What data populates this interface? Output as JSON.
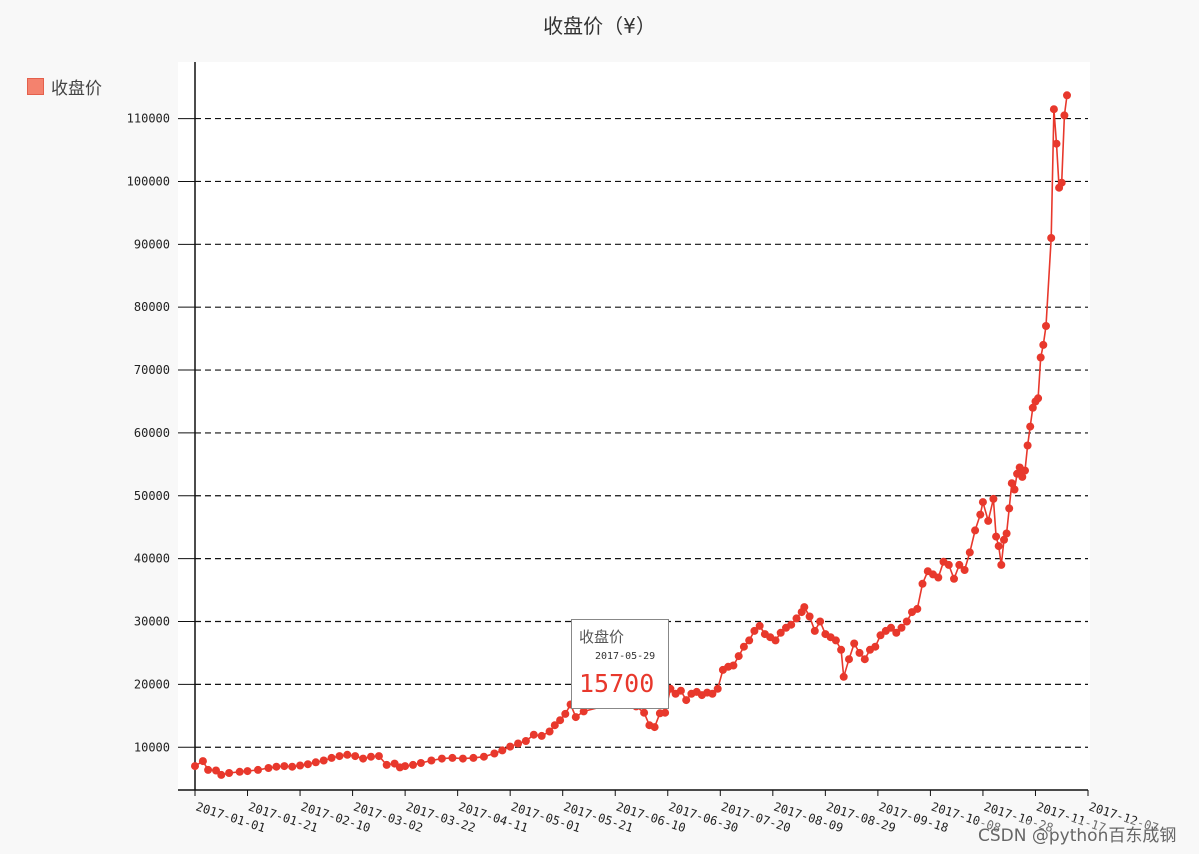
{
  "chart_data": {
    "type": "line",
    "title": "收盘价（¥）",
    "legend": {
      "position": "left",
      "entries": [
        "收盘价"
      ]
    },
    "series": [
      {
        "name": "收盘价",
        "color": "#e8382c",
        "points": [
          [
            "2017-01-01",
            7000
          ],
          [
            "2017-01-04",
            7800
          ],
          [
            "2017-01-06",
            6400
          ],
          [
            "2017-01-09",
            6300
          ],
          [
            "2017-01-11",
            5600
          ],
          [
            "2017-01-14",
            5900
          ],
          [
            "2017-01-18",
            6100
          ],
          [
            "2017-01-21",
            6200
          ],
          [
            "2017-01-25",
            6400
          ],
          [
            "2017-01-29",
            6700
          ],
          [
            "2017-02-01",
            6900
          ],
          [
            "2017-02-04",
            7000
          ],
          [
            "2017-02-07",
            6900
          ],
          [
            "2017-02-10",
            7100
          ],
          [
            "2017-02-13",
            7300
          ],
          [
            "2017-02-16",
            7600
          ],
          [
            "2017-02-19",
            7900
          ],
          [
            "2017-02-22",
            8300
          ],
          [
            "2017-02-25",
            8600
          ],
          [
            "2017-02-28",
            8800
          ],
          [
            "2017-03-03",
            8600
          ],
          [
            "2017-03-06",
            8200
          ],
          [
            "2017-03-09",
            8500
          ],
          [
            "2017-03-12",
            8600
          ],
          [
            "2017-03-15",
            7200
          ],
          [
            "2017-03-18",
            7400
          ],
          [
            "2017-03-20",
            6800
          ],
          [
            "2017-03-22",
            7000
          ],
          [
            "2017-03-25",
            7200
          ],
          [
            "2017-03-28",
            7500
          ],
          [
            "2017-04-01",
            7900
          ],
          [
            "2017-04-05",
            8200
          ],
          [
            "2017-04-09",
            8300
          ],
          [
            "2017-04-13",
            8200
          ],
          [
            "2017-04-17",
            8300
          ],
          [
            "2017-04-21",
            8500
          ],
          [
            "2017-04-25",
            9000
          ],
          [
            "2017-04-28",
            9500
          ],
          [
            "2017-05-01",
            10100
          ],
          [
            "2017-05-04",
            10600
          ],
          [
            "2017-05-07",
            11000
          ],
          [
            "2017-05-10",
            12000
          ],
          [
            "2017-05-13",
            11800
          ],
          [
            "2017-05-16",
            12500
          ],
          [
            "2017-05-18",
            13500
          ],
          [
            "2017-05-20",
            14300
          ],
          [
            "2017-05-22",
            15300
          ],
          [
            "2017-05-24",
            16800
          ],
          [
            "2017-05-26",
            14800
          ],
          [
            "2017-05-29",
            15700
          ],
          [
            "2017-06-15",
            17500
          ],
          [
            "2017-06-18",
            16500
          ],
          [
            "2017-06-21",
            15500
          ],
          [
            "2017-06-23",
            13500
          ],
          [
            "2017-06-25",
            13200
          ],
          [
            "2017-06-27",
            15400
          ],
          [
            "2017-06-29",
            15500
          ],
          [
            "2017-07-01",
            19300
          ],
          [
            "2017-07-03",
            18500
          ],
          [
            "2017-07-05",
            19000
          ],
          [
            "2017-07-07",
            17500
          ],
          [
            "2017-07-09",
            18500
          ],
          [
            "2017-07-11",
            18800
          ],
          [
            "2017-07-13",
            18300
          ],
          [
            "2017-07-15",
            18700
          ],
          [
            "2017-07-17",
            18500
          ],
          [
            "2017-07-19",
            19300
          ],
          [
            "2017-07-21",
            22300
          ],
          [
            "2017-07-23",
            22800
          ],
          [
            "2017-07-25",
            23000
          ],
          [
            "2017-07-27",
            24500
          ],
          [
            "2017-07-29",
            26000
          ],
          [
            "2017-07-31",
            27000
          ],
          [
            "2017-08-02",
            28500
          ],
          [
            "2017-08-04",
            29300
          ],
          [
            "2017-08-06",
            28000
          ],
          [
            "2017-08-08",
            27500
          ],
          [
            "2017-08-10",
            27000
          ],
          [
            "2017-08-12",
            28200
          ],
          [
            "2017-08-14",
            29000
          ],
          [
            "2017-08-16",
            29500
          ],
          [
            "2017-08-18",
            30500
          ],
          [
            "2017-08-20",
            31500
          ],
          [
            "2017-08-21",
            32300
          ],
          [
            "2017-08-23",
            30800
          ],
          [
            "2017-08-25",
            28500
          ],
          [
            "2017-08-27",
            30000
          ],
          [
            "2017-08-29",
            28000
          ],
          [
            "2017-08-31",
            27500
          ],
          [
            "2017-09-02",
            27000
          ],
          [
            "2017-09-04",
            25500
          ],
          [
            "2017-09-05",
            21200
          ],
          [
            "2017-09-07",
            24000
          ],
          [
            "2017-09-09",
            26500
          ],
          [
            "2017-09-11",
            25000
          ],
          [
            "2017-09-13",
            24000
          ],
          [
            "2017-09-15",
            25500
          ],
          [
            "2017-09-17",
            26000
          ],
          [
            "2017-09-19",
            27800
          ],
          [
            "2017-09-21",
            28500
          ],
          [
            "2017-09-23",
            29000
          ],
          [
            "2017-09-25",
            28200
          ],
          [
            "2017-09-27",
            29000
          ],
          [
            "2017-09-29",
            30000
          ],
          [
            "2017-10-01",
            31500
          ],
          [
            "2017-10-03",
            32000
          ],
          [
            "2017-10-05",
            36000
          ],
          [
            "2017-10-07",
            38000
          ],
          [
            "2017-10-09",
            37500
          ],
          [
            "2017-10-11",
            37000
          ],
          [
            "2017-10-13",
            39500
          ],
          [
            "2017-10-15",
            39000
          ],
          [
            "2017-10-17",
            36800
          ],
          [
            "2017-10-19",
            39000
          ],
          [
            "2017-10-21",
            38200
          ],
          [
            "2017-10-23",
            41000
          ],
          [
            "2017-10-25",
            44500
          ],
          [
            "2017-10-27",
            47000
          ],
          [
            "2017-10-28",
            49000
          ],
          [
            "2017-10-30",
            46000
          ],
          [
            "2017-11-01",
            49500
          ],
          [
            "2017-11-02",
            43500
          ],
          [
            "2017-11-03",
            42000
          ],
          [
            "2017-11-04",
            39000
          ],
          [
            "2017-11-05",
            43000
          ],
          [
            "2017-11-06",
            44000
          ],
          [
            "2017-11-07",
            48000
          ],
          [
            "2017-11-08",
            52000
          ],
          [
            "2017-11-09",
            51000
          ],
          [
            "2017-11-10",
            53500
          ],
          [
            "2017-11-11",
            54500
          ],
          [
            "2017-11-12",
            53000
          ],
          [
            "2017-11-13",
            54000
          ],
          [
            "2017-11-14",
            58000
          ],
          [
            "2017-11-15",
            61000
          ],
          [
            "2017-11-16",
            64000
          ],
          [
            "2017-11-17",
            65000
          ],
          [
            "2017-11-18",
            65500
          ],
          [
            "2017-11-19",
            72000
          ],
          [
            "2017-11-20",
            74000
          ],
          [
            "2017-11-21",
            77000
          ],
          [
            "2017-11-23",
            91000
          ],
          [
            "2017-11-24",
            111500
          ],
          [
            "2017-11-25",
            106000
          ],
          [
            "2017-11-26",
            99000
          ],
          [
            "2017-11-27",
            99800
          ],
          [
            "2017-11-28",
            110500
          ],
          [
            "2017-11-29",
            113700
          ]
        ]
      }
    ],
    "xlabel": "",
    "ylabel": "",
    "x_tick_labels": [
      "2017-01-01",
      "2017-01-21",
      "2017-02-10",
      "2017-03-02",
      "2017-03-22",
      "2017-04-11",
      "2017-05-01",
      "2017-05-21",
      "2017-06-10",
      "2017-06-30",
      "2017-07-20",
      "2017-08-09",
      "2017-08-29",
      "2017-09-18",
      "2017-10-08",
      "2017-10-28",
      "2017-11-17",
      "2017-12-07"
    ],
    "y_ticks": [
      10000,
      20000,
      30000,
      40000,
      50000,
      60000,
      70000,
      80000,
      90000,
      100000,
      110000
    ],
    "ylim": [
      3200,
      119000
    ],
    "xlim": [
      "2017-01-01",
      "2017-12-07"
    ],
    "grid": "horizontal-dashed",
    "tooltip": {
      "title": "收盘价",
      "date": "2017-05-29",
      "value": "15700"
    }
  },
  "watermark": "CSDN @python百东成钢"
}
